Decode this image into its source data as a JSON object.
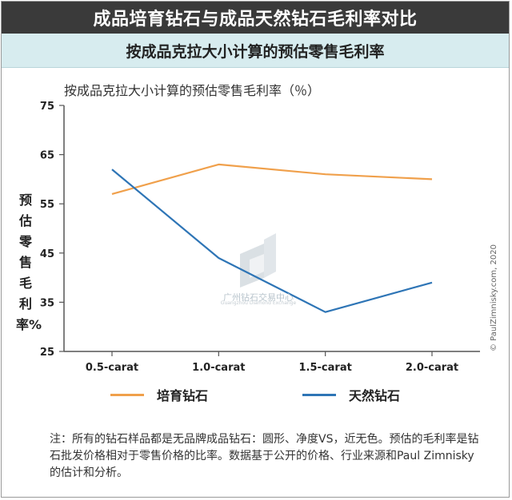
{
  "header": {
    "title": "成品培育钻石与成品天然钻石毛利率对比",
    "subtitle": "按成品克拉大小计算的预估零售毛利率"
  },
  "chart_data": {
    "type": "line",
    "title": "按成品克拉大小计算的预估零售毛利率（％）",
    "ylabel": "预估零售毛利率%",
    "xlabel": "",
    "categories": [
      "0.5-carat",
      "1.0-carat",
      "1.5-carat",
      "2.0-carat"
    ],
    "ylim": [
      25,
      75
    ],
    "yticks": [
      25,
      35,
      45,
      55,
      65,
      75
    ],
    "grid": false,
    "legend_position": "bottom",
    "series": [
      {
        "name": "培育钻石",
        "values": [
          57,
          63,
          61,
          60
        ],
        "color": "#f0a04b"
      },
      {
        "name": "天然钻石",
        "values": [
          62,
          44,
          33,
          39
        ],
        "color": "#2e75b6"
      }
    ],
    "copyright": "© PaulZimnisky.com, 2020"
  },
  "watermark": {
    "text": "广州钻石交易中心",
    "subtext": "Guangzhou Diamond Exchange"
  },
  "note": "注：所有的钻石样品都是无品牌成品钻石：圆形、净度VS，近无色。预估的毛利率是钻石批发价格相对于零售价格的比率。数据基于公开的价格、行业来源和Paul Zimnisky的估计和分析。"
}
